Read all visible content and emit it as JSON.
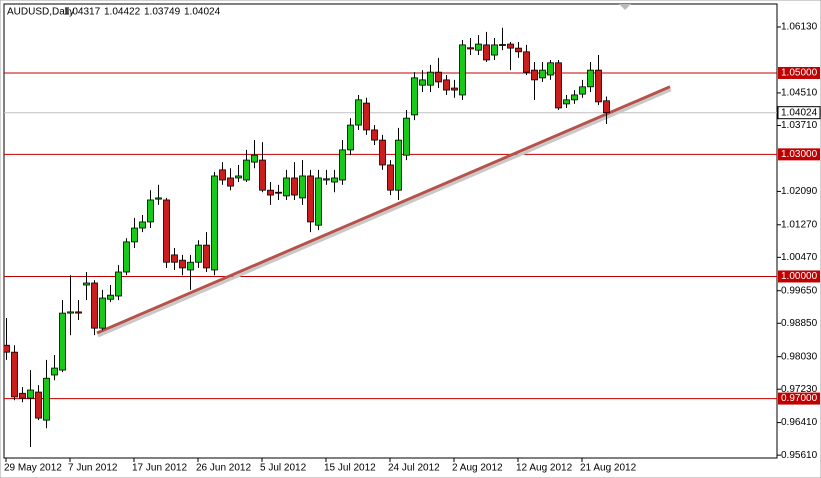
{
  "chart_data": {
    "type": "candlestick",
    "symbol": "AUDUSD,Daily",
    "categories": [
      "29 May 2012",
      null,
      null,
      null,
      null,
      null,
      null,
      null,
      "7 Jun 2012",
      null,
      null,
      null,
      null,
      null,
      null,
      null,
      "17 Jun 2012",
      null,
      null,
      null,
      null,
      null,
      null,
      null,
      "26 Jun 2012",
      null,
      null,
      null,
      null,
      null,
      null,
      null,
      "5 Jul 2012",
      null,
      null,
      null,
      null,
      null,
      null,
      null,
      "15 Jul 2012",
      null,
      null,
      null,
      null,
      null,
      null,
      null,
      "24 Jul 2012",
      null,
      null,
      null,
      null,
      null,
      null,
      null,
      "2 Aug 2012",
      null,
      null,
      null,
      null,
      null,
      null,
      null,
      "12 Aug 2012",
      null,
      null,
      null,
      null,
      null,
      null,
      null,
      "21 Aug 2012",
      null,
      null,
      null
    ],
    "open": [
      0.9831,
      0.9814,
      0.9713,
      0.9701,
      0.9716,
      0.9647,
      0.9758,
      0.977,
      0.991,
      0.9913,
      0.9979,
      0.9984,
      0.9873,
      0.9944,
      0.9952,
      1.0011,
      1.0085,
      1.0119,
      1.0134,
      1.019,
      1.0188,
      1.0053,
      1.004,
      1.0016,
      1.0035,
      1.0077,
      1.0016,
      1.0262,
      1.0242,
      1.0242,
      1.0237,
      1.0281,
      1.0286,
      1.0212,
      1.0207,
      1.0198,
      1.0242,
      1.0193,
      1.0247,
      1.0126,
      1.0237,
      1.0232,
      1.0237,
      1.0311,
      1.0372,
      1.0426,
      1.036,
      1.0335,
      1.0274,
      1.0212,
      1.0298,
      1.0397,
      1.047,
      1.047,
      1.0502,
      1.0483,
      1.0463,
      1.0446,
      1.0562,
      1.0556,
      1.0569,
      1.0544,
      1.0568,
      1.0571,
      1.0561,
      1.0552,
      1.0507,
      1.0488,
      1.0495,
      1.0525,
      1.0424,
      1.0434,
      1.0448,
      1.0466,
      1.0507,
      1.04317
    ],
    "high": [
      0.9898,
      0.9831,
      0.9728,
      0.977,
      0.9733,
      0.9795,
      0.9807,
      0.9942,
      1.0003,
      0.9942,
      1.0011,
      0.9991,
      0.9967,
      0.9979,
      1.0028,
      1.0094,
      1.0144,
      1.0151,
      1.0212,
      1.0225,
      1.0193,
      1.007,
      1.0053,
      1.0053,
      1.0089,
      1.0109,
      1.0257,
      1.0281,
      1.0266,
      1.0274,
      1.0311,
      1.0335,
      1.033,
      1.0232,
      1.0225,
      1.0262,
      1.0281,
      1.0286,
      1.0262,
      1.0262,
      1.0262,
      1.0262,
      1.0335,
      1.0389,
      1.0446,
      1.0439,
      1.0372,
      1.0348,
      1.0286,
      1.0365,
      1.0409,
      1.0502,
      1.0507,
      1.052,
      1.0537,
      1.0495,
      1.0483,
      1.0581,
      1.0586,
      1.0593,
      1.0601,
      1.0586,
      1.0611,
      1.0576,
      1.0576,
      1.0569,
      1.0527,
      1.0527,
      1.0532,
      1.0532,
      1.0446,
      1.0458,
      1.0483,
      1.0527,
      1.0544,
      1.04422
    ],
    "low": [
      0.9795,
      0.9696,
      0.9691,
      0.9581,
      0.9647,
      0.9627,
      0.9745,
      0.9765,
      0.9856,
      0.9893,
      0.9942,
      0.9856,
      0.9868,
      0.9937,
      0.9942,
      1.0003,
      1.007,
      1.0109,
      1.0119,
      1.0176,
      1.0021,
      1.0016,
      1.0003,
      0.9967,
      1.0021,
      1.0011,
      1.0003,
      1.0225,
      1.0212,
      1.0232,
      1.0232,
      1.0266,
      1.0207,
      1.0176,
      1.0188,
      1.0188,
      1.0188,
      1.0176,
      1.0109,
      1.0114,
      1.0225,
      1.0207,
      1.0225,
      1.0298,
      1.036,
      1.0348,
      1.0323,
      1.0262,
      1.02,
      1.0188,
      1.0286,
      1.0384,
      1.0453,
      1.0453,
      1.0463,
      1.0446,
      1.0439,
      1.0434,
      1.0544,
      1.0544,
      1.0527,
      1.0532,
      1.0556,
      1.0507,
      1.0537,
      1.0495,
      1.0434,
      1.0478,
      1.0483,
      1.0409,
      1.0414,
      1.0424,
      1.0439,
      1.0453,
      1.0421,
      1.03749
    ],
    "close": [
      0.9814,
      0.9704,
      0.9701,
      0.9721,
      0.9652,
      0.975,
      0.9775,
      0.991,
      0.9913,
      0.991,
      0.9984,
      0.9873,
      0.9947,
      0.9954,
      1.0011,
      1.0085,
      1.0119,
      1.0134,
      1.0188,
      1.0193,
      1.0035,
      1.0035,
      1.0021,
      1.0035,
      1.0077,
      1.0021,
      1.0247,
      1.0237,
      1.0222,
      1.0247,
      1.0286,
      1.0298,
      1.0212,
      1.02,
      1.0205,
      1.0242,
      1.02,
      1.0247,
      1.0134,
      1.0242,
      1.024,
      1.0242,
      1.0311,
      1.0372,
      1.0434,
      1.036,
      1.0335,
      1.0274,
      1.0212,
      1.0335,
      1.0389,
      1.0488,
      1.0483,
      1.0502,
      1.0478,
      1.0458,
      1.0458,
      1.0569,
      1.0559,
      1.0571,
      1.0532,
      1.0569,
      1.057,
      1.0561,
      1.0552,
      1.0502,
      1.0483,
      1.0507,
      1.0525,
      1.0414,
      1.0434,
      1.0446,
      1.0466,
      1.0507,
      1.0429,
      1.04024
    ],
    "up_color": "#19c819",
    "down_color": "#c81e1e",
    "ylim": [
      0.9554,
      1.0667
    ],
    "yticks": [
      {
        "value": 1.0613,
        "label": "1.06130"
      },
      {
        "value": 1.0451,
        "label": "1.04510"
      },
      {
        "value": 1.0371,
        "label": "1.03710"
      },
      {
        "value": 1.0209,
        "label": "1.02090"
      },
      {
        "value": 1.0127,
        "label": "1.01270"
      },
      {
        "value": 1.0047,
        "label": "1.00470"
      },
      {
        "value": 0.9965,
        "label": "0.99650"
      },
      {
        "value": 0.9885,
        "label": "0.98850"
      },
      {
        "value": 0.9803,
        "label": "0.98030"
      },
      {
        "value": 0.9723,
        "label": "0.97230"
      },
      {
        "value": 0.9641,
        "label": "0.96410"
      },
      {
        "value": 0.9561,
        "label": "0.95610"
      }
    ],
    "hlines": [
      {
        "value": 1.05,
        "label": "1.05000"
      },
      {
        "value": 1.03,
        "label": "1.03000"
      },
      {
        "value": 1,
        "label": "1.00000"
      },
      {
        "value": 0.97,
        "label": "0.97000"
      }
    ],
    "hline_color": "#c00000",
    "last_price": {
      "value": 1.04024,
      "label": "1.04024"
    },
    "trendline": {
      "color": "#b5524a",
      "values": [
        0.9861,
        1.0466
      ]
    },
    "grid": false
  }
}
